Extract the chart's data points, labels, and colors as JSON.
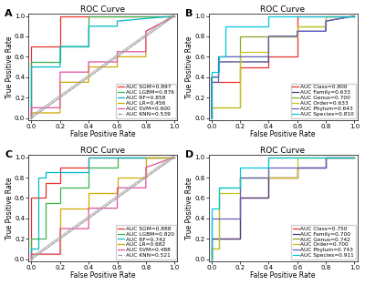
{
  "title": "ROC Curve",
  "xlabel": "False Positive Rate",
  "ylabel": "True Positive Rate",
  "panels": {
    "A": {
      "curves": [
        {
          "label": "AUC SGM=0.897",
          "color": "#e8302a",
          "x": [
            0,
            0,
            0.2,
            0.2,
            0.4,
            0.4,
            1.0
          ],
          "y": [
            0,
            0.7,
            0.7,
            1.0,
            1.0,
            1.0,
            1.0
          ]
        },
        {
          "label": "AUC LGBM=0.876",
          "color": "#3db34a",
          "x": [
            0,
            0,
            0.2,
            0.2,
            0.4,
            0.4,
            1.0
          ],
          "y": [
            0,
            0.55,
            0.55,
            0.7,
            0.7,
            1.0,
            1.0
          ]
        },
        {
          "label": "AUC RF=0.858",
          "color": "#00b8c8",
          "x": [
            0,
            0,
            0.2,
            0.2,
            0.4,
            0.4,
            0.6,
            0.6,
            1.0
          ],
          "y": [
            0,
            0.5,
            0.5,
            0.7,
            0.7,
            0.9,
            0.9,
            0.95,
            1.0
          ]
        },
        {
          "label": "AUC LR=0.456",
          "color": "#d4a800",
          "x": [
            0,
            0,
            0.2,
            0.2,
            0.4,
            0.4,
            0.6,
            0.6,
            0.8,
            0.8,
            1.0
          ],
          "y": [
            0,
            0.05,
            0.05,
            0.35,
            0.35,
            0.5,
            0.5,
            0.6,
            0.6,
            0.85,
            1.0
          ]
        },
        {
          "label": "AUC SVM=0.600",
          "color": "#e050a0",
          "x": [
            0,
            0,
            0.2,
            0.2,
            0.4,
            0.4,
            0.6,
            0.6,
            0.8,
            0.8,
            1.0
          ],
          "y": [
            0,
            0.1,
            0.1,
            0.45,
            0.45,
            0.55,
            0.55,
            0.65,
            0.65,
            0.85,
            1.0
          ]
        },
        {
          "label": "AUC KNN=0.539",
          "color": "#999999",
          "x": [
            0,
            1
          ],
          "y": [
            0,
            1
          ],
          "dashed": true
        }
      ],
      "show_diagonal": true
    },
    "B": {
      "curves": [
        {
          "label": "AUC Class=0.800",
          "color": "#e8302a",
          "x": [
            0,
            0,
            0.2,
            0.2,
            0.4,
            0.4,
            0.6,
            0.6,
            1.0
          ],
          "y": [
            0,
            0.35,
            0.35,
            0.5,
            0.5,
            0.6,
            0.6,
            1.0,
            1.0
          ]
        },
        {
          "label": "AUC Family=0.633",
          "color": "#404080",
          "x": [
            0,
            0,
            0.05,
            0.05,
            0.4,
            0.4,
            0.6,
            0.6,
            0.8,
            0.8,
            1.0
          ],
          "y": [
            0,
            0.4,
            0.4,
            0.55,
            0.55,
            0.8,
            0.8,
            0.85,
            0.85,
            0.95,
            1.0
          ]
        },
        {
          "label": "AUC Genus=0.700",
          "color": "#88a828",
          "x": [
            0,
            0,
            0.2,
            0.2,
            0.6,
            0.6,
            0.8,
            0.8,
            1.0
          ],
          "y": [
            0,
            0.1,
            0.1,
            0.8,
            0.8,
            0.9,
            0.9,
            1.0,
            1.0
          ]
        },
        {
          "label": "AUC Order=0.633",
          "color": "#c8c020",
          "x": [
            0,
            0,
            0.2,
            0.2,
            0.4,
            0.4,
            0.6,
            0.6,
            0.8,
            0.8,
            1.0
          ],
          "y": [
            0,
            0.1,
            0.1,
            0.65,
            0.65,
            0.8,
            0.8,
            0.9,
            0.9,
            1.0,
            1.0
          ]
        },
        {
          "label": "AUC Phylum=0.643",
          "color": "#6060c0",
          "x": [
            0,
            0,
            0.05,
            0.05,
            0.4,
            0.4,
            0.6,
            0.6,
            0.8,
            0.8,
            1.0
          ],
          "y": [
            0,
            0.35,
            0.35,
            0.6,
            0.6,
            0.8,
            0.8,
            0.85,
            0.85,
            0.95,
            1.0
          ]
        },
        {
          "label": "AUC Species=0.810",
          "color": "#00c8d8",
          "x": [
            0,
            0,
            0.05,
            0.05,
            0.1,
            0.1,
            0.4,
            0.4,
            0.8,
            0.8,
            1.0
          ],
          "y": [
            0,
            0.45,
            0.45,
            0.6,
            0.6,
            0.9,
            0.9,
            1.0,
            1.0,
            1.0,
            1.0
          ]
        }
      ],
      "show_diagonal": false
    },
    "C": {
      "curves": [
        {
          "label": "AUC SGM=0.888",
          "color": "#e8302a",
          "x": [
            0,
            0,
            0.1,
            0.1,
            0.2,
            0.2,
            0.4,
            0.4,
            1.0
          ],
          "y": [
            0,
            0.6,
            0.6,
            0.75,
            0.75,
            0.9,
            0.9,
            1.0,
            1.0
          ]
        },
        {
          "label": "AUC LGBM=0.820",
          "color": "#3db34a",
          "x": [
            0,
            0,
            0.1,
            0.1,
            0.2,
            0.2,
            0.4,
            0.4,
            0.6,
            0.6,
            1.0
          ],
          "y": [
            0,
            0.2,
            0.2,
            0.55,
            0.55,
            0.7,
            0.7,
            0.9,
            0.9,
            1.0,
            1.0
          ]
        },
        {
          "label": "AUC RF=0.742",
          "color": "#00b8c8",
          "x": [
            0,
            0,
            0.05,
            0.05,
            0.1,
            0.1,
            0.4,
            0.4,
            0.6,
            0.6,
            1.0
          ],
          "y": [
            0,
            0.1,
            0.1,
            0.8,
            0.8,
            0.85,
            0.85,
            1.0,
            1.0,
            1.0,
            1.0
          ]
        },
        {
          "label": "AUC LR=0.682",
          "color": "#d4a800",
          "x": [
            0,
            0,
            0.2,
            0.2,
            0.4,
            0.4,
            0.6,
            0.6,
            0.8,
            0.8,
            1.0
          ],
          "y": [
            0,
            0.05,
            0.05,
            0.5,
            0.5,
            0.65,
            0.65,
            0.8,
            0.8,
            1.0,
            1.0
          ]
        },
        {
          "label": "AUC SVM=0.488",
          "color": "#e050a0",
          "x": [
            0,
            0,
            0.2,
            0.2,
            0.4,
            0.4,
            0.6,
            0.6,
            0.8,
            0.8,
            1.0
          ],
          "y": [
            0,
            0.05,
            0.05,
            0.3,
            0.3,
            0.5,
            0.5,
            0.7,
            0.7,
            0.9,
            1.0
          ]
        },
        {
          "label": "AUC KNN=0.521",
          "color": "#999999",
          "x": [
            0,
            1
          ],
          "y": [
            0,
            1
          ],
          "dashed": true
        }
      ],
      "show_diagonal": true
    },
    "D": {
      "curves": [
        {
          "label": "AUC Class=0.750",
          "color": "#e8302a",
          "x": [
            0,
            0,
            0.2,
            0.2,
            0.4,
            0.4,
            0.6,
            0.6,
            0.8,
            0.8,
            1.0
          ],
          "y": [
            0,
            0.2,
            0.2,
            0.6,
            0.6,
            0.8,
            0.8,
            0.9,
            0.9,
            1.0,
            1.0
          ]
        },
        {
          "label": "AUC Family=0.700",
          "color": "#404080",
          "x": [
            0,
            0,
            0.2,
            0.2,
            0.4,
            0.4,
            0.6,
            0.6,
            0.8,
            0.8,
            1.0
          ],
          "y": [
            0,
            0.2,
            0.2,
            0.6,
            0.6,
            0.8,
            0.8,
            0.9,
            0.9,
            1.0,
            1.0
          ]
        },
        {
          "label": "AUC Genus=0.742",
          "color": "#88a828",
          "x": [
            0,
            0,
            0.05,
            0.05,
            0.2,
            0.2,
            0.4,
            0.4,
            0.8,
            0.8,
            1.0
          ],
          "y": [
            0,
            0.1,
            0.1,
            0.7,
            0.7,
            0.8,
            0.8,
            1.0,
            1.0,
            1.0,
            1.0
          ]
        },
        {
          "label": "AUC Order=0.700",
          "color": "#c8c020",
          "x": [
            0,
            0,
            0.05,
            0.05,
            0.2,
            0.2,
            0.6,
            0.6,
            0.8,
            0.8,
            1.0
          ],
          "y": [
            0,
            0.1,
            0.1,
            0.65,
            0.65,
            0.8,
            0.8,
            1.0,
            1.0,
            1.0,
            1.0
          ]
        },
        {
          "label": "AUC Phylum=0.743",
          "color": "#6060c0",
          "x": [
            0,
            0,
            0.2,
            0.2,
            0.4,
            0.4,
            0.8,
            0.8,
            1.0
          ],
          "y": [
            0,
            0.4,
            0.4,
            0.8,
            0.8,
            0.9,
            0.9,
            1.0,
            1.0
          ]
        },
        {
          "label": "AUC Species=0.911",
          "color": "#00c8d8",
          "x": [
            0,
            0,
            0.05,
            0.05,
            0.2,
            0.2,
            0.4,
            0.4,
            0.6,
            0.6,
            1.0
          ],
          "y": [
            0,
            0.5,
            0.5,
            0.7,
            0.7,
            0.9,
            0.9,
            1.0,
            1.0,
            1.0,
            1.0
          ]
        }
      ],
      "show_diagonal": false
    }
  },
  "diagonal_color": "#aaaaaa",
  "background": "#ffffff",
  "tick_fontsize": 5,
  "label_fontsize": 5.5,
  "title_fontsize": 6.5,
  "legend_fontsize": 4.2,
  "panel_label_fontsize": 8
}
